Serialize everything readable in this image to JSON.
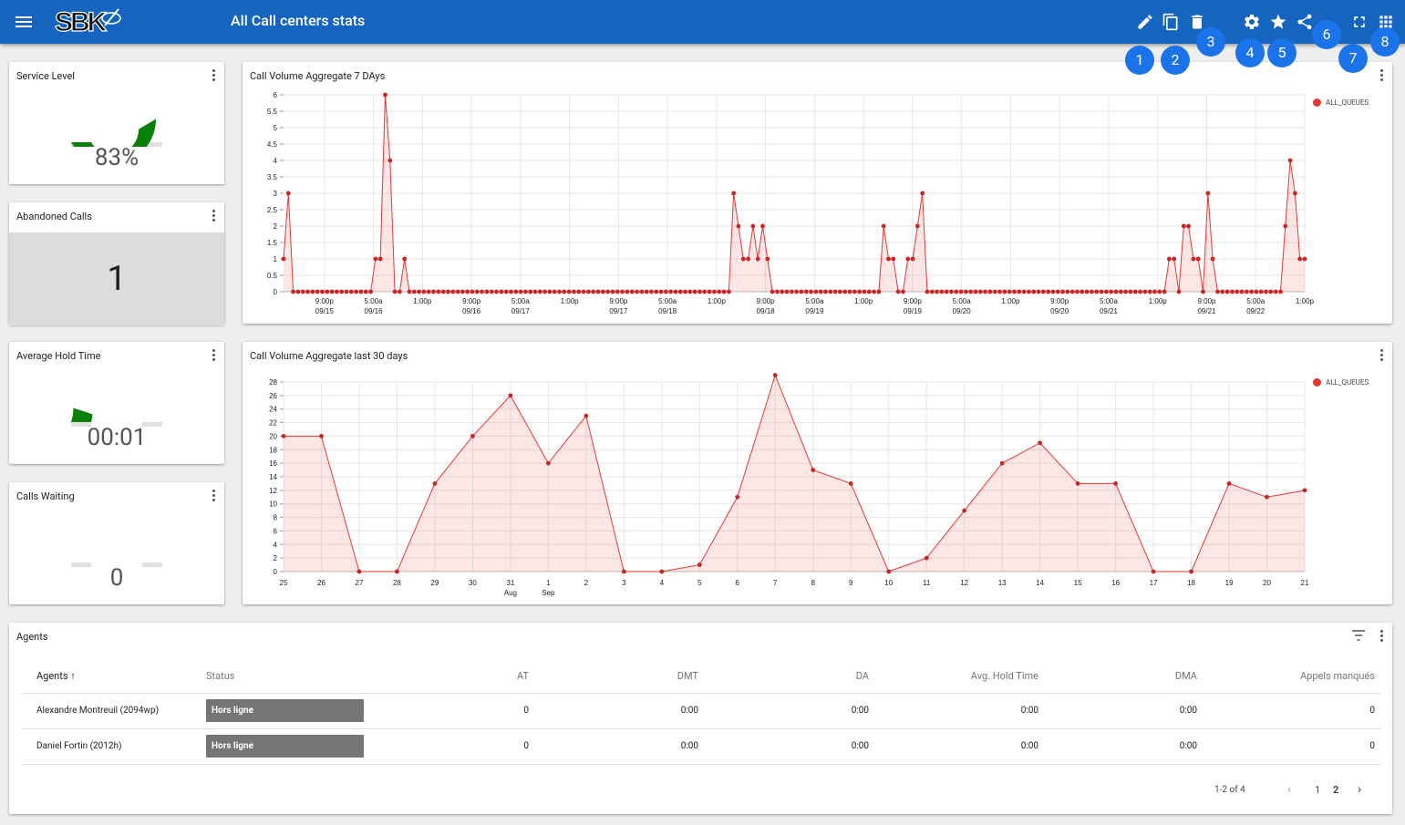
{
  "app": {
    "title": "All Call centers stats",
    "logo_text": "SBK"
  },
  "toolbar": {
    "buttons": [
      {
        "name": "edit-icon",
        "marker": "1"
      },
      {
        "name": "copy-icon",
        "marker": "2"
      },
      {
        "name": "delete-icon",
        "marker": "3"
      },
      {
        "name": "settings-icon",
        "marker": "4"
      },
      {
        "name": "star-icon",
        "marker": "5"
      },
      {
        "name": "share-icon",
        "marker": "6"
      },
      {
        "name": "fullscreen-icon",
        "marker": "7"
      },
      {
        "name": "apps-grid-icon",
        "marker": "8"
      }
    ]
  },
  "widgets": {
    "service_level": {
      "title": "Service Level",
      "value_text": "83%",
      "fill_fraction": 0.83,
      "color": "#0a7f0a"
    },
    "abandoned_calls": {
      "title": "Abandoned Calls",
      "value": "1"
    },
    "avg_hold_time": {
      "title": "Average Hold Time",
      "value_text": "00:01",
      "fill_fraction": 0.1,
      "color": "#0a7f0a"
    },
    "calls_waiting": {
      "title": "Calls Waiting",
      "value_text": "0",
      "fill_fraction": 0
    }
  },
  "chart_data": [
    {
      "type": "area",
      "title": "Call Volume Aggregate 7 DAys",
      "ylim": [
        0,
        6
      ],
      "yticks": [
        "0",
        "0.5",
        "1",
        "1.5",
        "2",
        "2.5",
        "3",
        "3.5",
        "4",
        "4.5",
        "5",
        "5.5",
        "6"
      ],
      "xtick_labels": [
        [
          "9:00p",
          "09/15"
        ],
        [
          "5:00a",
          "09/16"
        ],
        [
          "1:00p",
          ""
        ],
        [
          "9:00p",
          "09/16"
        ],
        [
          "5:00a",
          "09/17"
        ],
        [
          "1:00p",
          ""
        ],
        [
          "9:00p",
          "09/17"
        ],
        [
          "5:00a",
          "09/18"
        ],
        [
          "1:00p",
          ""
        ],
        [
          "9:00p",
          "09/18"
        ],
        [
          "5:00a",
          "09/19"
        ],
        [
          "1:00p",
          ""
        ],
        [
          "9:00p",
          "09/19"
        ],
        [
          "5:00a",
          "09/20"
        ],
        [
          "1:00p",
          ""
        ],
        [
          "9:00p",
          "09/20"
        ],
        [
          "5:00a",
          "09/21"
        ],
        [
          "1:00p",
          ""
        ],
        [
          "9:00p",
          "09/21"
        ],
        [
          "5:00a",
          "09/22"
        ],
        [
          "1:00p",
          ""
        ]
      ],
      "series": [
        {
          "name": "ALL_QUEUES",
          "color": "#e53935",
          "values": [
            1,
            3,
            0,
            0,
            0,
            0,
            0,
            0,
            0,
            0,
            0,
            0,
            0,
            0,
            0,
            0,
            0,
            0,
            0,
            1,
            1,
            6,
            4,
            0,
            0,
            1,
            0,
            0,
            0,
            0,
            0,
            0,
            0,
            0,
            0,
            0,
            0,
            0,
            0,
            0,
            0,
            0,
            0,
            0,
            0,
            0,
            0,
            0,
            0,
            0,
            0,
            0,
            0,
            0,
            0,
            0,
            0,
            0,
            0,
            0,
            0,
            0,
            0,
            0,
            0,
            0,
            0,
            0,
            0,
            0,
            0,
            0,
            0,
            0,
            0,
            0,
            0,
            0,
            0,
            0,
            0,
            0,
            0,
            0,
            0,
            0,
            0,
            0,
            0,
            0,
            0,
            0,
            0,
            3,
            2,
            1,
            1,
            2,
            1,
            2,
            1,
            0,
            0,
            0,
            0,
            0,
            0,
            0,
            0,
            0,
            0,
            0,
            0,
            0,
            0,
            0,
            0,
            0,
            0,
            0,
            0,
            0,
            0,
            0,
            2,
            1,
            1,
            0,
            0,
            1,
            1,
            2,
            3,
            0,
            0,
            0,
            0,
            0,
            0,
            0,
            0,
            0,
            0,
            0,
            0,
            0,
            0,
            0,
            0,
            0,
            0,
            0,
            0,
            0,
            0,
            0,
            0,
            0,
            0,
            0,
            0,
            0,
            0,
            0,
            0,
            0,
            0,
            0,
            0,
            0,
            0,
            0,
            0,
            0,
            0,
            0,
            0,
            0,
            0,
            0,
            0,
            0,
            0,
            1,
            1,
            0,
            2,
            2,
            1,
            1,
            0,
            3,
            1,
            0,
            0,
            0,
            0,
            0,
            0,
            0,
            0,
            0,
            0,
            0,
            0,
            0,
            0,
            2,
            4,
            3,
            1,
            1
          ]
        }
      ],
      "legend": "top-right",
      "grid": true
    },
    {
      "type": "area",
      "title": "Call Volume Aggregate last 30 days",
      "ylim": [
        0,
        28
      ],
      "yticks": [
        "0",
        "2",
        "4",
        "6",
        "8",
        "10",
        "12",
        "14",
        "16",
        "18",
        "20",
        "22",
        "24",
        "26",
        "28"
      ],
      "categories": [
        "25",
        "26",
        "27",
        "28",
        "29",
        "30",
        "31",
        "1",
        "2",
        "3",
        "4",
        "5",
        "6",
        "7",
        "8",
        "9",
        "10",
        "11",
        "12",
        "13",
        "14",
        "15",
        "16",
        "17",
        "18",
        "19",
        "20",
        "21"
      ],
      "month_labels": {
        "31": "Aug",
        "1": "Sep"
      },
      "series": [
        {
          "name": "ALL_QUEUES",
          "color": "#e53935",
          "values": [
            20,
            20,
            0,
            0,
            13,
            20,
            26,
            16,
            23,
            0,
            0,
            1,
            11,
            29,
            15,
            13,
            0,
            2,
            9,
            16,
            19,
            13,
            13,
            0,
            0,
            13,
            11,
            12
          ]
        }
      ],
      "legend": "top-right",
      "grid": true
    }
  ],
  "agents": {
    "title": "Agents",
    "columns": [
      "Agents",
      "Status",
      "AT",
      "DMT",
      "DA",
      "Avg. Hold Time",
      "DMA",
      "Appels manqués"
    ],
    "rows": [
      [
        "Alexandre Montreuil (2094wp)",
        "Hors ligne",
        "0",
        "0:00",
        "0:00",
        "0:00",
        "0:00",
        "0"
      ],
      [
        "Daniel Fortin (2012h)",
        "Hors ligne",
        "0",
        "0:00",
        "0:00",
        "0:00",
        "0:00",
        "0"
      ]
    ],
    "pagination": {
      "range": "1-2 of 4",
      "pages": [
        "1",
        "2"
      ]
    }
  }
}
